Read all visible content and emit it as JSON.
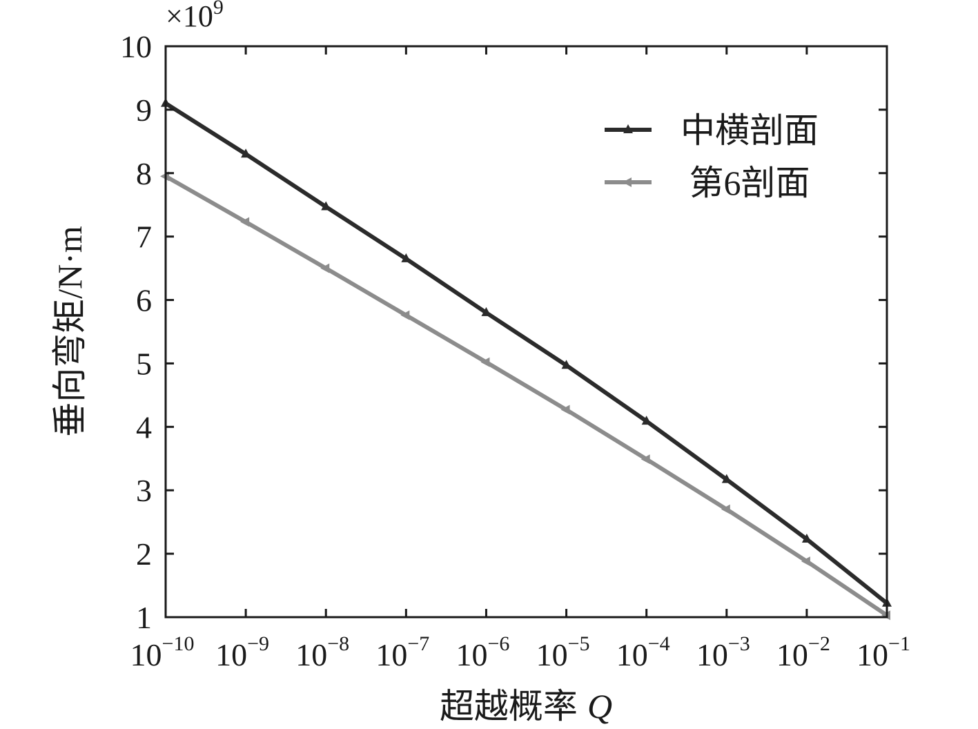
{
  "chart_data": {
    "type": "line",
    "xlabel": "超越概率",
    "xlabel_symbol": "Q",
    "ylabel": "垂向弯矩/N·m",
    "y_multiplier": {
      "base": "×10",
      "exponent": "9"
    },
    "x_scale": "log",
    "xlim": [
      1e-10,
      0.1
    ],
    "ylim": [
      1,
      10
    ],
    "x_ticks": [
      {
        "base": "10",
        "exp": "−10",
        "value": 1e-10
      },
      {
        "base": "10",
        "exp": "−9",
        "value": 1e-09
      },
      {
        "base": "10",
        "exp": "−8",
        "value": 1e-08
      },
      {
        "base": "10",
        "exp": "−7",
        "value": 1e-07
      },
      {
        "base": "10",
        "exp": "−6",
        "value": 1e-06
      },
      {
        "base": "10",
        "exp": "−5",
        "value": 1e-05
      },
      {
        "base": "10",
        "exp": "−4",
        "value": 0.0001
      },
      {
        "base": "10",
        "exp": "−3",
        "value": 0.001
      },
      {
        "base": "10",
        "exp": "−2",
        "value": 0.01
      },
      {
        "base": "10",
        "exp": "−1",
        "value": 0.1
      }
    ],
    "y_ticks": [
      {
        "label": "1",
        "value": 1
      },
      {
        "label": "2",
        "value": 2
      },
      {
        "label": "3",
        "value": 3
      },
      {
        "label": "4",
        "value": 4
      },
      {
        "label": "5",
        "value": 5
      },
      {
        "label": "6",
        "value": 6
      },
      {
        "label": "7",
        "value": 7
      },
      {
        "label": "8",
        "value": 8
      },
      {
        "label": "9",
        "value": 9
      },
      {
        "label": "10",
        "value": 10
      }
    ],
    "grid": false,
    "legend_position": "top-right",
    "series": [
      {
        "name": "中横剖面",
        "color": "#2b2b2b",
        "marker": "triangle-up",
        "x": [
          1e-10,
          1e-09,
          1e-08,
          1e-07,
          1e-06,
          1e-05,
          0.0001,
          0.001,
          0.01,
          0.1
        ],
        "y": [
          9.1,
          8.3,
          7.47,
          6.65,
          5.8,
          4.97,
          4.09,
          3.17,
          2.23,
          1.22
        ]
      },
      {
        "name": "第6剖面",
        "color": "#8c8c8c",
        "marker": "triangle-left",
        "x": [
          1e-10,
          1e-09,
          1e-08,
          1e-07,
          1e-06,
          1e-05,
          0.0001,
          0.001,
          0.01,
          0.1
        ],
        "y": [
          7.95,
          7.23,
          6.5,
          5.76,
          5.02,
          4.27,
          3.49,
          2.7,
          1.88,
          1.03
        ]
      }
    ]
  }
}
